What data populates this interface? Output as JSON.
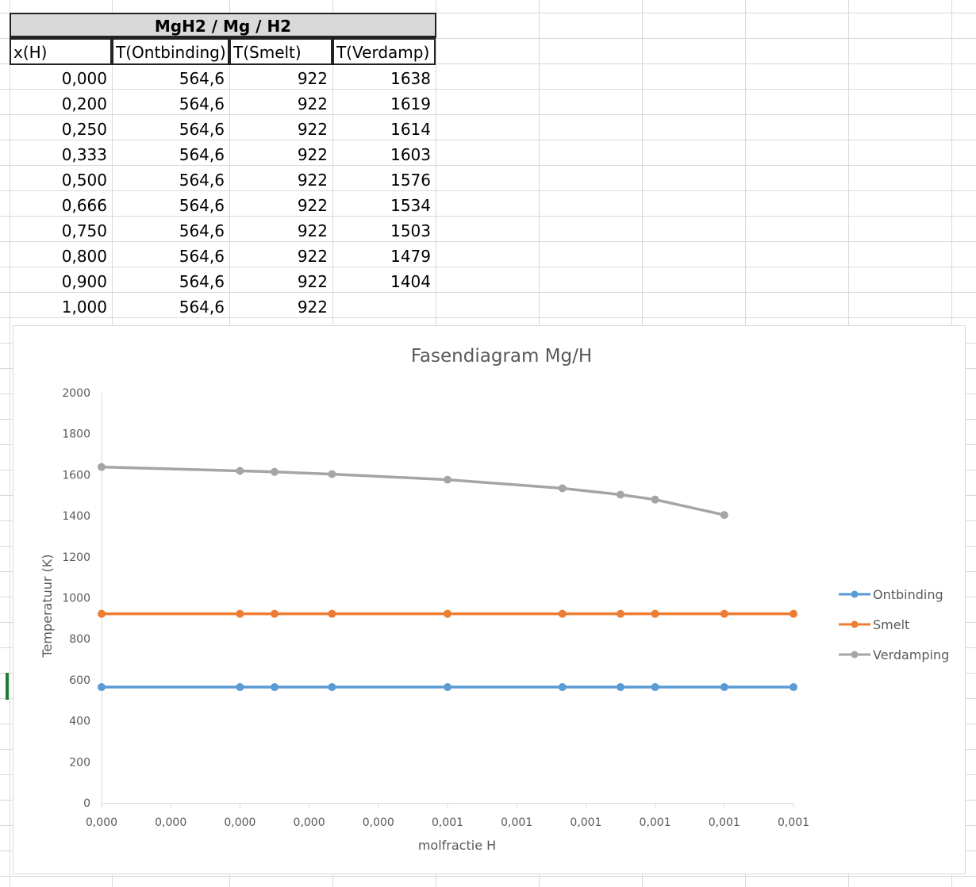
{
  "sheet": {
    "title": "MgH2 / Mg / H2",
    "headers": [
      "x(H)",
      "T(Ontbinding)",
      "T(Smelt)",
      "T(Verdamp)"
    ],
    "rows": [
      [
        "0,000",
        "564,6",
        "922",
        "1638"
      ],
      [
        "0,200",
        "564,6",
        "922",
        "1619"
      ],
      [
        "0,250",
        "564,6",
        "922",
        "1614"
      ],
      [
        "0,333",
        "564,6",
        "922",
        "1603"
      ],
      [
        "0,500",
        "564,6",
        "922",
        "1576"
      ],
      [
        "0,666",
        "564,6",
        "922",
        "1534"
      ],
      [
        "0,750",
        "564,6",
        "922",
        "1503"
      ],
      [
        "0,800",
        "564,6",
        "922",
        "1479"
      ],
      [
        "0,900",
        "564,6",
        "922",
        "1404"
      ],
      [
        "1,000",
        "564,6",
        "922",
        ""
      ]
    ]
  },
  "colors": {
    "ontbinding": "#5b9bd5",
    "smelt": "#ed7d31",
    "verdamping": "#a5a5a5",
    "grid": "#d9d9d9",
    "axis_text": "#595959"
  },
  "chart_data": {
    "type": "line",
    "title": "Fasendiagram Mg/H",
    "xlabel": "molfractie H",
    "ylabel": "Temperatuur (K)",
    "ylim": [
      0,
      2000
    ],
    "yticks": [
      "0",
      "200",
      "400",
      "600",
      "800",
      "1000",
      "1200",
      "1400",
      "1600",
      "1800",
      "2000"
    ],
    "xlim": [
      0,
      1
    ],
    "xtick_labels": [
      "0,000",
      "0,000",
      "0,000",
      "0,000",
      "0,000",
      "0,001",
      "0,001",
      "0,001",
      "0,001",
      "0,001",
      "0,001"
    ],
    "legend_position": "right",
    "x": [
      0.0,
      0.2,
      0.25,
      0.333,
      0.5,
      0.666,
      0.75,
      0.8,
      0.9,
      1.0
    ],
    "series": [
      {
        "name": "Ontbinding",
        "color": "#5b9bd5",
        "values": [
          564.6,
          564.6,
          564.6,
          564.6,
          564.6,
          564.6,
          564.6,
          564.6,
          564.6,
          564.6
        ]
      },
      {
        "name": "Smelt",
        "color": "#ed7d31",
        "values": [
          922,
          922,
          922,
          922,
          922,
          922,
          922,
          922,
          922,
          922
        ]
      },
      {
        "name": "Verdamping",
        "color": "#a5a5a5",
        "values": [
          1638,
          1619,
          1614,
          1603,
          1576,
          1534,
          1503,
          1479,
          1404,
          null
        ]
      }
    ]
  }
}
